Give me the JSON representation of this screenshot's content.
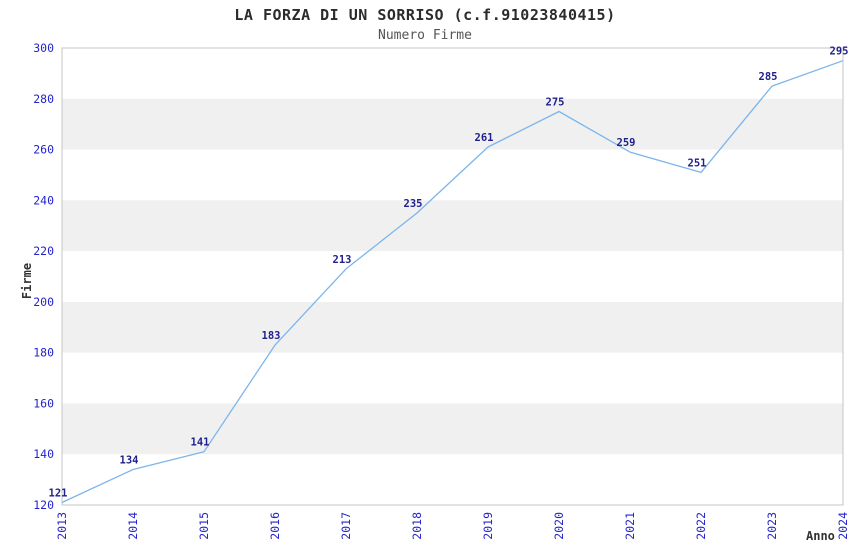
{
  "header": {
    "title": "LA FORZA DI UN SORRISO (c.f.91023840415)",
    "subtitle": "Numero Firme"
  },
  "chart_data": {
    "type": "line",
    "title": "LA FORZA DI UN SORRISO (c.f.91023840415)",
    "subtitle": "Numero Firme",
    "xlabel": "Anno",
    "ylabel": "Firme",
    "categories": [
      "2013",
      "2014",
      "2015",
      "2016",
      "2017",
      "2018",
      "2019",
      "2020",
      "2021",
      "2022",
      "2023",
      "2024"
    ],
    "values": [
      121,
      134,
      141,
      183,
      213,
      235,
      261,
      275,
      259,
      251,
      285,
      295
    ],
    "ylim": [
      120,
      300
    ],
    "ytick_step": 20,
    "yticks": [
      120,
      140,
      160,
      180,
      200,
      220,
      240,
      260,
      280,
      300
    ],
    "grid": "alternating-horizontal-bands",
    "legend_position": "none",
    "data_labels_visible": true,
    "colors": {
      "background": "#ffffff",
      "line": "#7cb5ec",
      "tick_label": "#2424cc",
      "point_label": "#1f1f8c",
      "band": "#f0f0f0",
      "plot_border": "#c6c6c6",
      "title": "#2b2b2b",
      "subtitle": "#555555",
      "axis_title": "#333333"
    }
  }
}
